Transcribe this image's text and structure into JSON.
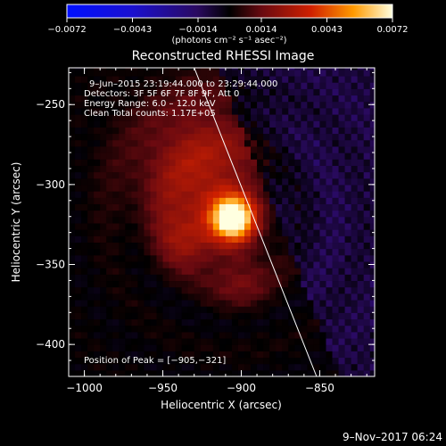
{
  "chart_data": {
    "type": "heatmap",
    "title": "Reconstructed RHESSI Image",
    "xlabel": "Heliocentric X (arcsec)",
    "ylabel": "Heliocentric Y (arcsec)",
    "xlim": [
      -1010,
      -815
    ],
    "ylim": [
      -420,
      -227
    ],
    "x_ticks": [
      -1000,
      -950,
      -900,
      -850
    ],
    "x_tick_labels": [
      "−1000",
      "−950",
      "−900",
      "−850"
    ],
    "y_ticks": [
      -400,
      -350,
      -300,
      -250
    ],
    "y_tick_labels": [
      "−400",
      "−350",
      "−300",
      "−250"
    ],
    "colorbar": {
      "range": [
        -0.0072,
        0.0072
      ],
      "tick_values": [
        -0.0072,
        -0.0043,
        -0.0014,
        0.0014,
        0.0043,
        0.0072
      ],
      "tick_labels": [
        "−0.0072",
        "−0.0043",
        "−0.0014",
        "0.0014",
        "0.0043",
        "0.0072"
      ],
      "unit_label": "(photons cm⁻² s⁻¹ asec⁻²)"
    },
    "annotations": [
      "9–Jun–2015 23:19:44.000 to 23:29:44.000",
      "Detectors: 3F 5F 6F 7F 8F 9F, Att 0",
      "Energy Range: 6.0 – 12.0 keV",
      "Clean    Total counts: 1.17E+05"
    ],
    "peak_label": "Position of Peak = [−905,−321]",
    "peak": {
      "x": -905,
      "y": -321
    },
    "limb_line": [
      {
        "x": -930,
        "y": -227
      },
      {
        "x": -852,
        "y": -420
      }
    ],
    "sources": [
      {
        "x": -905,
        "y": -321,
        "amp": 0.0068,
        "sigma": 8
      },
      {
        "x": -912,
        "y": -315,
        "amp": 0.0022,
        "sigma": 22
      },
      {
        "x": -935,
        "y": -335,
        "amp": 0.0016,
        "sigma": 12
      },
      {
        "x": -900,
        "y": -358,
        "amp": 0.0012,
        "sigma": 14
      },
      {
        "x": -940,
        "y": -290,
        "amp": 0.0014,
        "sigma": 28
      },
      {
        "x": -920,
        "y": -265,
        "amp": 0.001,
        "sigma": 25
      }
    ],
    "footer": "9–Nov–2017 06:24"
  }
}
